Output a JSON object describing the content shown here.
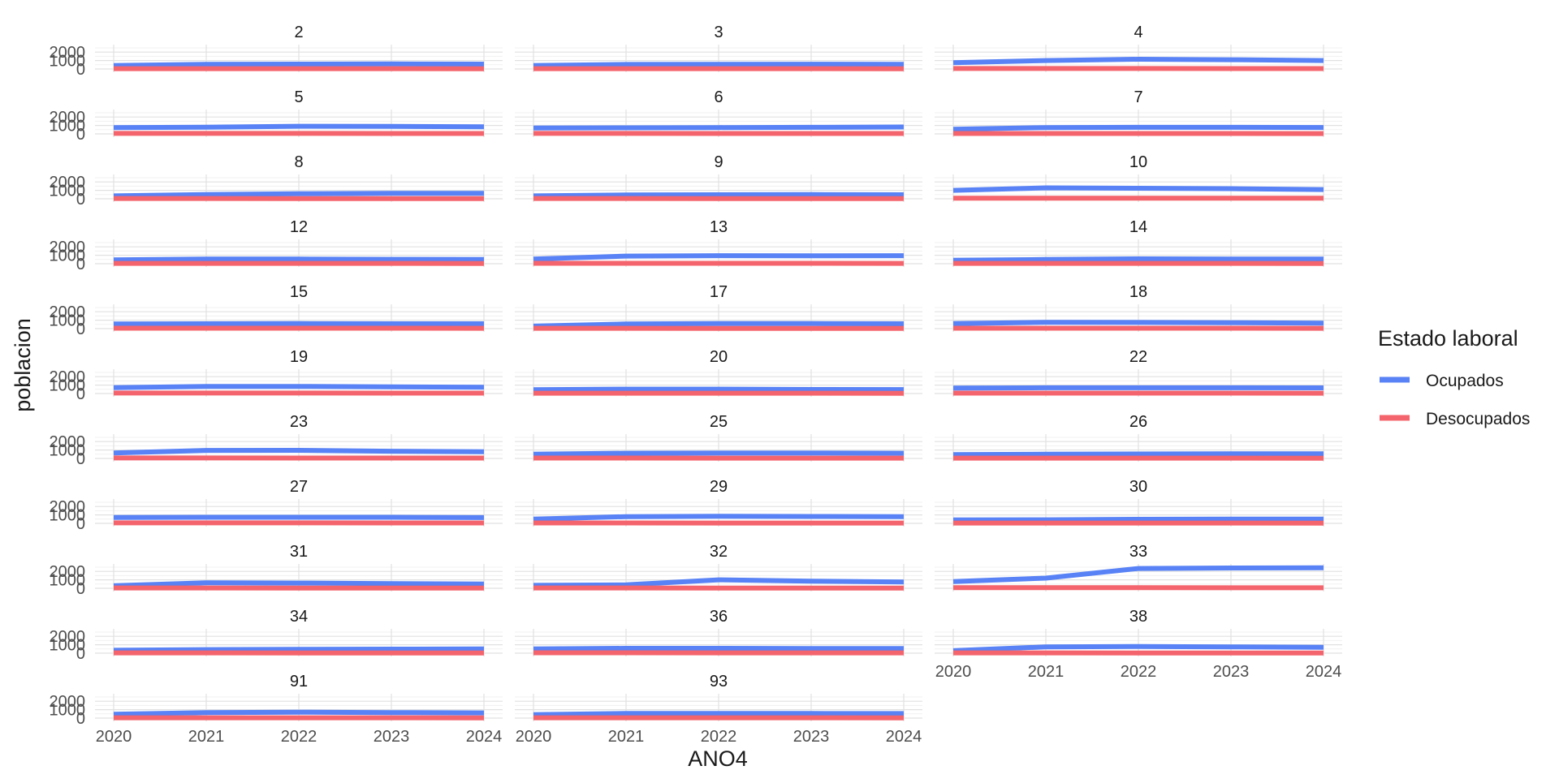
{
  "chart_data": {
    "type": "line",
    "x": [
      2020,
      2021,
      2022,
      2023,
      2024
    ],
    "xlabel": "ANO4",
    "ylabel": "poblacion",
    "ylim": [
      0,
      2500
    ],
    "y_ticks": [
      0,
      1000,
      2000
    ],
    "x_ticks": [
      2020,
      2021,
      2022,
      2023,
      2024
    ],
    "grid": true,
    "legend": {
      "title": "Estado laboral",
      "position": "right",
      "entries": [
        {
          "name": "Ocupados",
          "color": "#5882f5"
        },
        {
          "name": "Desocupados",
          "color": "#f4646c"
        }
      ]
    },
    "series_names": [
      "Ocupados",
      "Desocupados"
    ],
    "series_colors": [
      "#5882f5",
      "#f4646c"
    ],
    "panels": [
      {
        "label": "2",
        "Ocupados": [
          400,
          550,
          580,
          600,
          580
        ],
        "Desocupados": [
          40,
          40,
          35,
          35,
          30
        ]
      },
      {
        "label": "3",
        "Ocupados": [
          400,
          540,
          560,
          570,
          560
        ],
        "Desocupados": [
          40,
          40,
          35,
          35,
          30
        ]
      },
      {
        "label": "4",
        "Ocupados": [
          750,
          1000,
          1150,
          1100,
          1000
        ],
        "Desocupados": [
          60,
          60,
          55,
          50,
          45
        ]
      },
      {
        "label": "5",
        "Ocupados": [
          750,
          800,
          900,
          880,
          850
        ],
        "Desocupados": [
          60,
          60,
          55,
          50,
          45
        ]
      },
      {
        "label": "6",
        "Ocupados": [
          700,
          720,
          750,
          780,
          820
        ],
        "Desocupados": [
          55,
          55,
          50,
          50,
          45
        ]
      },
      {
        "label": "7",
        "Ocupados": [
          550,
          750,
          780,
          780,
          760
        ],
        "Desocupados": [
          50,
          50,
          45,
          45,
          40
        ]
      },
      {
        "label": "8",
        "Ocupados": [
          350,
          500,
          600,
          650,
          650
        ],
        "Desocupados": [
          35,
          35,
          30,
          30,
          30
        ]
      },
      {
        "label": "9",
        "Ocupados": [
          350,
          450,
          480,
          500,
          480
        ],
        "Desocupados": [
          35,
          35,
          30,
          30,
          30
        ]
      },
      {
        "label": "10",
        "Ocupados": [
          1000,
          1300,
          1250,
          1200,
          1100
        ],
        "Desocupados": [
          80,
          80,
          75,
          70,
          65
        ]
      },
      {
        "label": "12",
        "Ocupados": [
          450,
          550,
          550,
          520,
          500
        ],
        "Desocupados": [
          40,
          40,
          35,
          35,
          30
        ]
      },
      {
        "label": "13",
        "Ocupados": [
          550,
          900,
          950,
          930,
          950
        ],
        "Desocupados": [
          50,
          50,
          45,
          45,
          40
        ]
      },
      {
        "label": "14",
        "Ocupados": [
          400,
          500,
          580,
          560,
          560
        ],
        "Desocupados": [
          40,
          40,
          35,
          35,
          30
        ]
      },
      {
        "label": "15",
        "Ocupados": [
          550,
          580,
          600,
          580,
          580
        ],
        "Desocupados": [
          50,
          50,
          45,
          45,
          40
        ]
      },
      {
        "label": "17",
        "Ocupados": [
          300,
          550,
          600,
          600,
          580
        ],
        "Desocupados": [
          35,
          35,
          30,
          30,
          30
        ]
      },
      {
        "label": "18",
        "Ocupados": [
          600,
          750,
          730,
          700,
          650
        ],
        "Desocupados": [
          50,
          50,
          45,
          45,
          40
        ]
      },
      {
        "label": "19",
        "Ocupados": [
          700,
          850,
          850,
          800,
          750
        ],
        "Desocupados": [
          60,
          60,
          55,
          50,
          45
        ]
      },
      {
        "label": "20",
        "Ocupados": [
          450,
          520,
          520,
          480,
          470
        ],
        "Desocupados": [
          40,
          40,
          35,
          35,
          30
        ]
      },
      {
        "label": "22",
        "Ocupados": [
          650,
          680,
          680,
          680,
          670
        ],
        "Desocupados": [
          50,
          50,
          45,
          45,
          40
        ]
      },
      {
        "label": "23",
        "Ocupados": [
          650,
          950,
          960,
          860,
          800
        ],
        "Desocupados": [
          55,
          55,
          50,
          50,
          45
        ]
      },
      {
        "label": "25",
        "Ocupados": [
          500,
          620,
          630,
          630,
          620
        ],
        "Desocupados": [
          45,
          45,
          40,
          40,
          35
        ]
      },
      {
        "label": "26",
        "Ocupados": [
          450,
          500,
          530,
          550,
          560
        ],
        "Desocupados": [
          40,
          40,
          35,
          35,
          30
        ]
      },
      {
        "label": "27",
        "Ocupados": [
          700,
          720,
          720,
          720,
          680
        ],
        "Desocupados": [
          60,
          60,
          55,
          50,
          45
        ]
      },
      {
        "label": "29",
        "Ocupados": [
          500,
          800,
          850,
          820,
          800
        ],
        "Desocupados": [
          45,
          45,
          40,
          40,
          35
        ]
      },
      {
        "label": "30",
        "Ocupados": [
          400,
          420,
          480,
          500,
          500
        ],
        "Desocupados": [
          40,
          40,
          35,
          35,
          30
        ]
      },
      {
        "label": "31",
        "Ocupados": [
          300,
          650,
          620,
          550,
          500
        ],
        "Desocupados": [
          35,
          35,
          30,
          30,
          30
        ]
      },
      {
        "label": "32",
        "Ocupados": [
          350,
          400,
          1000,
          850,
          750
        ],
        "Desocupados": [
          35,
          35,
          30,
          30,
          30
        ]
      },
      {
        "label": "33",
        "Ocupados": [
          800,
          1200,
          2350,
          2400,
          2420
        ],
        "Desocupados": [
          70,
          70,
          65,
          60,
          55
        ]
      },
      {
        "label": "34",
        "Ocupados": [
          350,
          420,
          450,
          480,
          500
        ],
        "Desocupados": [
          35,
          35,
          30,
          30,
          30
        ]
      },
      {
        "label": "36",
        "Ocupados": [
          500,
          580,
          580,
          560,
          550
        ],
        "Desocupados": [
          45,
          45,
          40,
          40,
          35
        ]
      },
      {
        "label": "38",
        "Ocupados": [
          300,
          750,
          800,
          750,
          700
        ],
        "Desocupados": [
          35,
          35,
          30,
          30,
          30
        ]
      },
      {
        "label": "91",
        "Ocupados": [
          450,
          650,
          700,
          650,
          620
        ],
        "Desocupados": [
          40,
          40,
          35,
          35,
          30
        ]
      },
      {
        "label": "93",
        "Ocupados": [
          400,
          550,
          550,
          550,
          540
        ],
        "Desocupados": [
          40,
          40,
          35,
          35,
          30
        ]
      }
    ]
  }
}
